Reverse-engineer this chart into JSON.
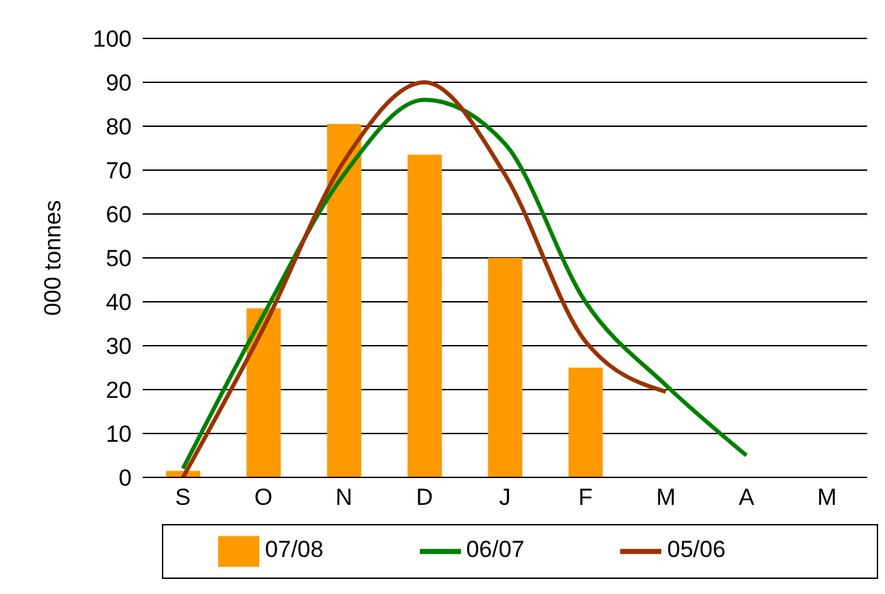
{
  "chart_data": {
    "type": "bar",
    "ylabel": "000 tonnes",
    "categories": [
      "S",
      "O",
      "N",
      "D",
      "J",
      "F",
      "M",
      "A",
      "M"
    ],
    "series": [
      {
        "name": "07/08",
        "color": "#ff9900",
        "values": [
          1.5,
          38.5,
          80.5,
          73.5,
          50,
          25,
          null,
          null,
          null
        ]
      },
      {
        "name": "06/07",
        "type": "line",
        "color": "#008000",
        "values": [
          2,
          37,
          69,
          86,
          76,
          40,
          21,
          5,
          null
        ]
      },
      {
        "name": "05/06",
        "type": "line",
        "color": "#993300",
        "values": [
          0,
          34,
          72,
          90,
          69,
          31,
          19.5,
          null,
          null
        ]
      }
    ],
    "ylim": [
      0,
      100
    ],
    "yticks": [
      0,
      10,
      20,
      30,
      40,
      50,
      60,
      70,
      80,
      90,
      100
    ],
    "grid": "y",
    "legend": "bottom",
    "marker": "none"
  }
}
